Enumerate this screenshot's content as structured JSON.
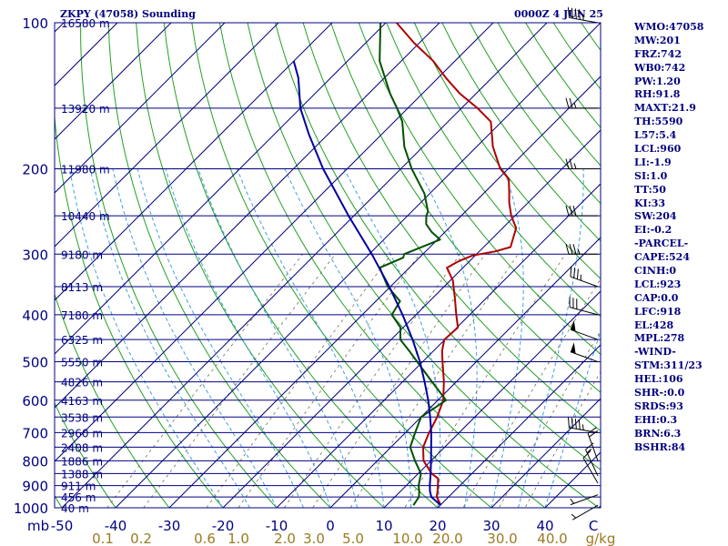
{
  "header": {
    "title": "ZKPY (47058) Sounding",
    "timestamp": "0000Z  4 JUN 25"
  },
  "side_panel": [
    "WMO:47058",
    "MW:201",
    "FRZ:742",
    "WB0:742",
    "PW:1.20",
    "RH:91.8",
    "MAXT:21.9",
    "TH:5590",
    "L57:5.4",
    "LCL:960",
    "LI:-1.9",
    "SI:1.0",
    "TT:50",
    "KI:33",
    "SW:204",
    "EI:-0.2",
    "-PARCEL-",
    "CAPE:524",
    "CINH:0",
    "LCL:923",
    "CAP:0.0",
    "LFC:918",
    "EL:428",
    "MPL:278",
    "-WIND-",
    "STM:311/23",
    "HEL:106",
    "SHR-:0.0",
    "SRDS:93",
    "EHI:0.3",
    "BRN:6.3",
    "BSHR:84"
  ],
  "colors": {
    "temperature": "#b00000",
    "dewpoint": "#005000",
    "parcel": "#0000a0",
    "isobar": "#000080",
    "isotherm": "#000080",
    "dry_adiabat": "#22a022",
    "moist_adiabat": "#40a0e0",
    "mixing_ratio": "#707050",
    "panel_text": "#000080",
    "mixing_ratio_label": "#9a7a20"
  },
  "chart_data": {
    "type": "line",
    "chart_kind": "skew-T log-p sounding",
    "xlabel": "",
    "ylabel": "mb",
    "pressure_range_mb": [
      1000,
      100
    ],
    "temperature_range_c": [
      -50,
      50
    ],
    "y_scale": "log",
    "pressure_ticks": [
      {
        "label": "100",
        "p": 100
      },
      {
        "label": "200",
        "p": 200
      },
      {
        "label": "300",
        "p": 300
      },
      {
        "label": "400",
        "p": 400
      },
      {
        "label": "500",
        "p": 500
      },
      {
        "label": "600",
        "p": 600
      },
      {
        "label": "700",
        "p": 700
      },
      {
        "label": "800",
        "p": 800
      },
      {
        "label": "900",
        "p": 900
      },
      {
        "label": "1000",
        "p": 1000
      }
    ],
    "y_axis_unit_label": "mb",
    "temperature_ticks": [
      {
        "label": "-50",
        "t": -50
      },
      {
        "label": "-40",
        "t": -40
      },
      {
        "label": "-30",
        "t": -30
      },
      {
        "label": "-20",
        "t": -20
      },
      {
        "label": "-10",
        "t": -10
      },
      {
        "label": "0",
        "t": 0
      },
      {
        "label": "10",
        "t": 10
      },
      {
        "label": "20",
        "t": 20
      },
      {
        "label": "30",
        "t": 30
      },
      {
        "label": "40",
        "t": 40
      },
      {
        "label": "C",
        "t": 49
      }
    ],
    "mixing_ratio_labels": [
      "0.1",
      "0.2",
      "0.6",
      "1.0",
      "2.0",
      "3.0",
      "5.0",
      "10.0",
      "20.0",
      "30.0",
      "40.0",
      "g/kg"
    ],
    "height_labels": [
      {
        "p": 100,
        "label": "16580 m"
      },
      {
        "p": 150,
        "label": "13920 m"
      },
      {
        "p": 200,
        "label": "11980 m"
      },
      {
        "p": 250,
        "label": "10440 m"
      },
      {
        "p": 300,
        "label": "9180 m"
      },
      {
        "p": 350,
        "label": "8113 m"
      },
      {
        "p": 400,
        "label": "7180 m"
      },
      {
        "p": 450,
        "label": "6325 m"
      },
      {
        "p": 500,
        "label": "5550 m"
      },
      {
        "p": 550,
        "label": "4826 m"
      },
      {
        "p": 600,
        "label": "4163 m"
      },
      {
        "p": 650,
        "label": "3538 m"
      },
      {
        "p": 700,
        "label": "2960 m"
      },
      {
        "p": 750,
        "label": "2408 m"
      },
      {
        "p": 800,
        "label": "1886 m"
      },
      {
        "p": 850,
        "label": "1388 m"
      },
      {
        "p": 900,
        "label": "911 m"
      },
      {
        "p": 950,
        "label": "456 m"
      },
      {
        "p": 1000,
        "label": "40 m"
      }
    ],
    "series": [
      {
        "key": "temperature",
        "points": [
          [
            988,
            20.1
          ],
          [
            950,
            17.8
          ],
          [
            925,
            16.9
          ],
          [
            900,
            15.9
          ],
          [
            870,
            14.6
          ],
          [
            850,
            12.5
          ],
          [
            800,
            8.6
          ],
          [
            750,
            6.0
          ],
          [
            700,
            4.4
          ],
          [
            650,
            3.0
          ],
          [
            600,
            1.0
          ],
          [
            550,
            -2.3
          ],
          [
            500,
            -6.3
          ],
          [
            475,
            -8.4
          ],
          [
            450,
            -10.1
          ],
          [
            425,
            -9.8
          ],
          [
            400,
            -12.5
          ],
          [
            370,
            -15.8
          ],
          [
            340,
            -19.5
          ],
          [
            320,
            -23.0
          ],
          [
            310,
            -22.0
          ],
          [
            302,
            -20.5
          ],
          [
            296,
            -17.0
          ],
          [
            290,
            -15.0
          ],
          [
            265,
            -17.5
          ],
          [
            250,
            -20.7
          ],
          [
            235,
            -23.5
          ],
          [
            225,
            -25.2
          ],
          [
            210,
            -28.0
          ],
          [
            200,
            -31.5
          ],
          [
            180,
            -37.0
          ],
          [
            160,
            -42.0
          ],
          [
            150,
            -47.0
          ],
          [
            140,
            -53.0
          ],
          [
            130,
            -58.5
          ],
          [
            120,
            -64.0
          ],
          [
            110,
            -71.0
          ],
          [
            100,
            -78.0
          ]
        ]
      },
      {
        "key": "dewpoint",
        "points": [
          [
            988,
            15.0
          ],
          [
            950,
            14.5
          ],
          [
            925,
            13.5
          ],
          [
            900,
            12.3
          ],
          [
            850,
            10.5
          ],
          [
            800,
            7.0
          ],
          [
            750,
            3.6
          ],
          [
            700,
            1.8
          ],
          [
            650,
            0.0
          ],
          [
            600,
            1.5
          ],
          [
            550,
            -4.5
          ],
          [
            500,
            -11.0
          ],
          [
            475,
            -14.5
          ],
          [
            450,
            -18.3
          ],
          [
            425,
            -20.5
          ],
          [
            400,
            -24.5
          ],
          [
            375,
            -25.5
          ],
          [
            350,
            -30.5
          ],
          [
            320,
            -35.5
          ],
          [
            305,
            -33.0
          ],
          [
            300,
            -33.5
          ],
          [
            280,
            -29.5
          ],
          [
            270,
            -32.5
          ],
          [
            260,
            -35.0
          ],
          [
            250,
            -36.5
          ],
          [
            245,
            -37.0
          ],
          [
            225,
            -41.0
          ],
          [
            200,
            -48.0
          ],
          [
            180,
            -53.5
          ],
          [
            160,
            -58.5
          ],
          [
            150,
            -62.0
          ],
          [
            140,
            -66.0
          ],
          [
            120,
            -74.0
          ],
          [
            100,
            -81.0
          ]
        ]
      },
      {
        "key": "parcel",
        "points": [
          [
            988,
            20.1
          ],
          [
            950,
            16.8
          ],
          [
            925,
            15.5
          ],
          [
            900,
            14.4
          ],
          [
            850,
            12.3
          ],
          [
            800,
            10.0
          ],
          [
            750,
            7.5
          ],
          [
            700,
            4.8
          ],
          [
            650,
            1.7
          ],
          [
            600,
            -1.8
          ],
          [
            550,
            -5.9
          ],
          [
            500,
            -10.5
          ],
          [
            450,
            -16.0
          ],
          [
            400,
            -22.5
          ],
          [
            350,
            -30.2
          ],
          [
            300,
            -39.5
          ],
          [
            250,
            -51.0
          ],
          [
            200,
            -64.5
          ],
          [
            170,
            -73.5
          ],
          [
            150,
            -80.0
          ],
          [
            130,
            -86.0
          ],
          [
            120,
            -90.0
          ]
        ]
      }
    ],
    "wind_barbs": [
      {
        "p": 988,
        "dir": 240,
        "kt": 5
      },
      {
        "p": 940,
        "dir": 250,
        "kt": 5
      },
      {
        "p": 890,
        "dir": 330,
        "kt": 10
      },
      {
        "p": 860,
        "dir": 335,
        "kt": 15
      },
      {
        "p": 800,
        "dir": 340,
        "kt": 20
      },
      {
        "p": 700,
        "dir": 280,
        "kt": 45
      },
      {
        "p": 500,
        "dir": 290,
        "kt": 50
      },
      {
        "p": 450,
        "dir": 290,
        "kt": 50
      },
      {
        "p": 400,
        "dir": 285,
        "kt": 30
      },
      {
        "p": 350,
        "dir": 290,
        "kt": 35
      },
      {
        "p": 300,
        "dir": 270,
        "kt": 35
      },
      {
        "p": 250,
        "dir": 270,
        "kt": 30
      },
      {
        "p": 200,
        "dir": 270,
        "kt": 25
      },
      {
        "p": 150,
        "dir": 270,
        "kt": 25
      },
      {
        "p": 100,
        "dir": 280,
        "kt": 45
      }
    ]
  }
}
